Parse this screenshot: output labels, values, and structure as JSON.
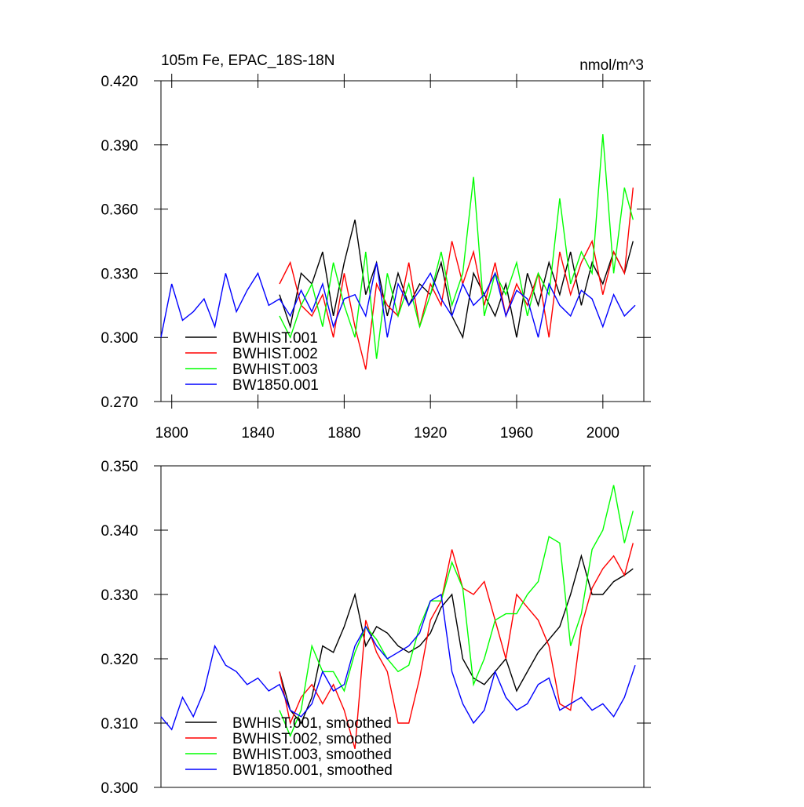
{
  "chart_data": [
    {
      "type": "line",
      "title": "105m Fe, EPAC_18S-18N",
      "unit_label": "nmol/m^3",
      "xlim": [
        1795,
        2019
      ],
      "xticks": [
        1800,
        1840,
        1880,
        1920,
        1960,
        2000
      ],
      "ylim": [
        0.27,
        0.42
      ],
      "yticks": [
        {
          "value": 0.27,
          "label": "0.270"
        },
        {
          "value": 0.3,
          "label": "0.300"
        },
        {
          "value": 0.33,
          "label": "0.330"
        },
        {
          "value": 0.36,
          "label": "0.360"
        },
        {
          "value": 0.39,
          "label": "0.390"
        },
        {
          "value": 0.42,
          "label": "0.420"
        }
      ],
      "legend": "lower left",
      "series": [
        {
          "name": "BWHIST.001",
          "color": "#000000",
          "x": [
            1850,
            1855,
            1860,
            1865,
            1870,
            1875,
            1880,
            1885,
            1890,
            1895,
            1900,
            1905,
            1910,
            1915,
            1920,
            1925,
            1930,
            1935,
            1940,
            1945,
            1950,
            1955,
            1960,
            1965,
            1970,
            1975,
            1980,
            1985,
            1990,
            1995,
            2000,
            2005,
            2010,
            2014
          ],
          "values": [
            0.32,
            0.305,
            0.33,
            0.325,
            0.34,
            0.31,
            0.335,
            0.355,
            0.32,
            0.335,
            0.31,
            0.33,
            0.315,
            0.325,
            0.32,
            0.335,
            0.31,
            0.3,
            0.33,
            0.32,
            0.31,
            0.325,
            0.3,
            0.33,
            0.315,
            0.335,
            0.32,
            0.34,
            0.315,
            0.335,
            0.325,
            0.34,
            0.33,
            0.345
          ]
        },
        {
          "name": "BWHIST.002",
          "color": "#ff0000",
          "x": [
            1850,
            1855,
            1860,
            1865,
            1870,
            1875,
            1880,
            1885,
            1890,
            1895,
            1900,
            1905,
            1910,
            1915,
            1920,
            1925,
            1930,
            1935,
            1940,
            1945,
            1950,
            1955,
            1960,
            1965,
            1970,
            1975,
            1980,
            1985,
            1990,
            1995,
            2000,
            2005,
            2010,
            2014
          ],
          "values": [
            0.325,
            0.335,
            0.315,
            0.31,
            0.32,
            0.3,
            0.33,
            0.305,
            0.285,
            0.325,
            0.315,
            0.31,
            0.335,
            0.305,
            0.325,
            0.315,
            0.345,
            0.325,
            0.34,
            0.315,
            0.335,
            0.31,
            0.325,
            0.315,
            0.33,
            0.3,
            0.34,
            0.32,
            0.335,
            0.345,
            0.32,
            0.34,
            0.33,
            0.37
          ]
        },
        {
          "name": "BWHIST.003",
          "color": "#00ff00",
          "x": [
            1850,
            1855,
            1860,
            1865,
            1870,
            1875,
            1880,
            1885,
            1890,
            1895,
            1900,
            1905,
            1910,
            1915,
            1920,
            1925,
            1930,
            1935,
            1940,
            1945,
            1950,
            1955,
            1960,
            1965,
            1970,
            1975,
            1980,
            1985,
            1990,
            1995,
            2000,
            2005,
            2010,
            2014
          ],
          "values": [
            0.31,
            0.3,
            0.315,
            0.325,
            0.305,
            0.335,
            0.315,
            0.3,
            0.34,
            0.29,
            0.33,
            0.31,
            0.325,
            0.305,
            0.32,
            0.34,
            0.315,
            0.33,
            0.375,
            0.31,
            0.33,
            0.32,
            0.335,
            0.31,
            0.33,
            0.32,
            0.365,
            0.325,
            0.34,
            0.33,
            0.395,
            0.33,
            0.37,
            0.355
          ]
        },
        {
          "name": "BW1850.001",
          "color": "#0000ff",
          "x": [
            1795,
            1800,
            1805,
            1810,
            1815,
            1820,
            1825,
            1830,
            1835,
            1840,
            1845,
            1850,
            1855,
            1860,
            1865,
            1870,
            1875,
            1880,
            1885,
            1890,
            1895,
            1900,
            1905,
            1910,
            1915,
            1920,
            1925,
            1930,
            1935,
            1940,
            1945,
            1950,
            1955,
            1960,
            1965,
            1970,
            1975,
            1980,
            1985,
            1990,
            1995,
            2000,
            2005,
            2010,
            2015
          ],
          "values": [
            0.3,
            0.325,
            0.308,
            0.312,
            0.318,
            0.305,
            0.33,
            0.312,
            0.322,
            0.33,
            0.315,
            0.318,
            0.31,
            0.322,
            0.312,
            0.325,
            0.305,
            0.318,
            0.32,
            0.31,
            0.335,
            0.3,
            0.325,
            0.315,
            0.322,
            0.33,
            0.318,
            0.31,
            0.325,
            0.315,
            0.32,
            0.33,
            0.31,
            0.322,
            0.318,
            0.3,
            0.325,
            0.315,
            0.31,
            0.322,
            0.318,
            0.305,
            0.32,
            0.31,
            0.315
          ]
        }
      ]
    },
    {
      "type": "line",
      "xlim": [
        1795,
        2019
      ],
      "ylim": [
        0.3,
        0.35
      ],
      "yticks": [
        {
          "value": 0.3,
          "label": "0.300"
        },
        {
          "value": 0.31,
          "label": "0.310"
        },
        {
          "value": 0.32,
          "label": "0.320"
        },
        {
          "value": 0.33,
          "label": "0.330"
        },
        {
          "value": 0.34,
          "label": "0.340"
        },
        {
          "value": 0.35,
          "label": "0.350"
        }
      ],
      "legend": "lower left",
      "series": [
        {
          "name": "BWHIST.001, smoothed",
          "color": "#000000",
          "x": [
            1850,
            1855,
            1860,
            1865,
            1870,
            1875,
            1880,
            1885,
            1890,
            1895,
            1900,
            1905,
            1910,
            1915,
            1920,
            1925,
            1930,
            1935,
            1940,
            1945,
            1950,
            1955,
            1960,
            1965,
            1970,
            1975,
            1980,
            1985,
            1990,
            1995,
            2000,
            2005,
            2010,
            2014
          ],
          "values": [
            0.318,
            0.312,
            0.31,
            0.314,
            0.322,
            0.321,
            0.325,
            0.33,
            0.322,
            0.325,
            0.324,
            0.322,
            0.321,
            0.322,
            0.324,
            0.328,
            0.33,
            0.32,
            0.317,
            0.316,
            0.318,
            0.32,
            0.315,
            0.318,
            0.321,
            0.323,
            0.325,
            0.33,
            0.336,
            0.33,
            0.33,
            0.332,
            0.333,
            0.334
          ]
        },
        {
          "name": "BWHIST.002, smoothed",
          "color": "#ff0000",
          "x": [
            1850,
            1855,
            1860,
            1865,
            1870,
            1875,
            1880,
            1885,
            1890,
            1895,
            1900,
            1905,
            1910,
            1915,
            1920,
            1925,
            1930,
            1935,
            1940,
            1945,
            1950,
            1955,
            1960,
            1965,
            1970,
            1975,
            1980,
            1985,
            1990,
            1995,
            2000,
            2005,
            2010,
            2014
          ],
          "values": [
            0.318,
            0.31,
            0.314,
            0.316,
            0.313,
            0.316,
            0.312,
            0.306,
            0.326,
            0.321,
            0.318,
            0.31,
            0.31,
            0.317,
            0.326,
            0.329,
            0.337,
            0.331,
            0.33,
            0.332,
            0.326,
            0.32,
            0.33,
            0.328,
            0.326,
            0.322,
            0.313,
            0.312,
            0.325,
            0.331,
            0.334,
            0.336,
            0.333,
            0.338
          ]
        },
        {
          "name": "BWHIST.003, smoothed",
          "color": "#00ff00",
          "x": [
            1850,
            1855,
            1860,
            1865,
            1870,
            1875,
            1880,
            1885,
            1890,
            1895,
            1900,
            1905,
            1910,
            1915,
            1920,
            1925,
            1930,
            1935,
            1940,
            1945,
            1950,
            1955,
            1960,
            1965,
            1970,
            1975,
            1980,
            1985,
            1990,
            1995,
            2000,
            2005,
            2010,
            2014
          ],
          "values": [
            0.312,
            0.308,
            0.312,
            0.322,
            0.318,
            0.318,
            0.315,
            0.321,
            0.325,
            0.323,
            0.32,
            0.318,
            0.319,
            0.325,
            0.329,
            0.329,
            0.335,
            0.331,
            0.316,
            0.32,
            0.326,
            0.327,
            0.327,
            0.33,
            0.332,
            0.339,
            0.338,
            0.322,
            0.327,
            0.337,
            0.34,
            0.347,
            0.338,
            0.343
          ]
        },
        {
          "name": "BW1850.001, smoothed",
          "color": "#0000ff",
          "x": [
            1795,
            1800,
            1805,
            1810,
            1815,
            1820,
            1825,
            1830,
            1835,
            1840,
            1845,
            1850,
            1855,
            1860,
            1865,
            1870,
            1875,
            1880,
            1885,
            1890,
            1895,
            1900,
            1905,
            1910,
            1915,
            1920,
            1925,
            1930,
            1935,
            1940,
            1945,
            1950,
            1955,
            1960,
            1965,
            1970,
            1975,
            1980,
            1985,
            1990,
            1995,
            2000,
            2005,
            2010,
            2015
          ],
          "values": [
            0.311,
            0.309,
            0.314,
            0.311,
            0.315,
            0.322,
            0.319,
            0.318,
            0.316,
            0.317,
            0.315,
            0.316,
            0.312,
            0.311,
            0.313,
            0.318,
            0.315,
            0.316,
            0.322,
            0.325,
            0.322,
            0.32,
            0.321,
            0.322,
            0.324,
            0.329,
            0.33,
            0.318,
            0.313,
            0.31,
            0.312,
            0.318,
            0.314,
            0.312,
            0.313,
            0.316,
            0.317,
            0.312,
            0.313,
            0.314,
            0.312,
            0.313,
            0.311,
            0.314,
            0.319
          ]
        }
      ]
    }
  ]
}
